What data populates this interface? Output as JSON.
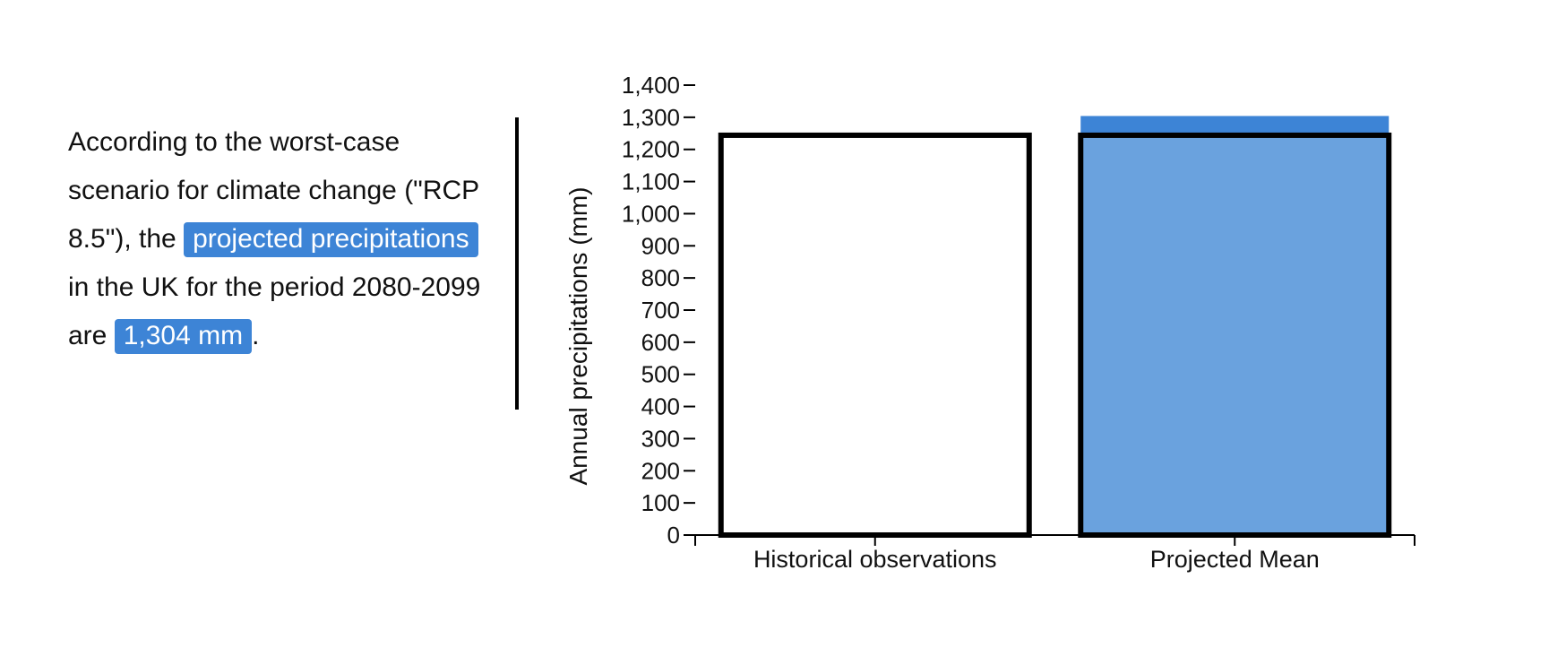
{
  "sentence": {
    "part1": "According to the worst-case scenario for climate change (\"RCP 8.5\"), the ",
    "highlight1": "projected precipitations",
    "part2": " in the UK for the period 2080-2099 are ",
    "highlight2": "1,304 mm",
    "part3": "."
  },
  "colors": {
    "highlight": "#3d84d6",
    "projected_fill": "#6aa2de",
    "projected_top": "#3d84d6",
    "outline": "#000000"
  },
  "chart_data": {
    "type": "bar",
    "categories": [
      "Historical observations",
      "Projected Mean"
    ],
    "ylabel": "Annual precipitations (mm)",
    "ylim": [
      0,
      1400
    ],
    "yticks": [
      0,
      100,
      200,
      300,
      400,
      500,
      600,
      700,
      800,
      900,
      1000,
      1100,
      1200,
      1300,
      1400
    ],
    "ytick_labels": [
      "0",
      "100",
      "200",
      "300",
      "400",
      "500",
      "600",
      "700",
      "800",
      "900",
      "1,000",
      "1,100",
      "1,200",
      "1,300",
      "1,400"
    ],
    "historical_value": 1244,
    "projected_value": 1304,
    "grid": false,
    "legend": "none"
  }
}
